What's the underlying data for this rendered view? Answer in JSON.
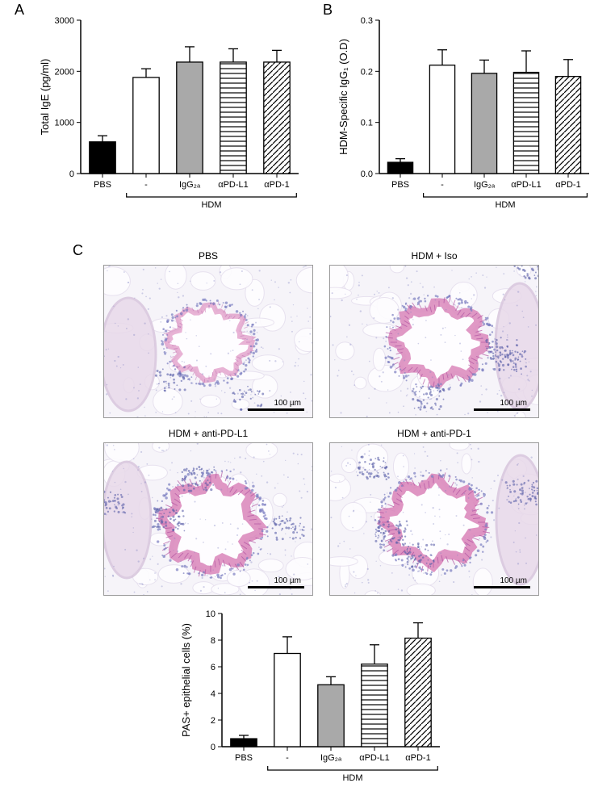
{
  "panelLabels": {
    "A": "A",
    "B": "B",
    "C": "C"
  },
  "chartA": {
    "type": "bar",
    "ylabel": "Total IgE (pg/ml)",
    "ylim": [
      0,
      3000
    ],
    "ytick_step": 1000,
    "categories": [
      "PBS",
      "-",
      "IgG₂ₐ",
      "αPD-L1",
      "αPD-1"
    ],
    "values": [
      620,
      1880,
      2180,
      2180,
      2180
    ],
    "errors": [
      120,
      170,
      300,
      260,
      230
    ],
    "fills": [
      "solid-black",
      "solid-white",
      "solid-grey",
      "hstripe",
      "dstripe"
    ],
    "hdm_bracket_start_idx": 1,
    "hdm_label": "HDM",
    "bar_width": 0.6,
    "colors": {
      "solid-black": "#000000",
      "solid-white": "#ffffff",
      "solid-grey": "#a9a9a9",
      "stripe": "#000000"
    },
    "background_color": "#ffffff",
    "label_fontsize": 13
  },
  "chartB": {
    "type": "bar",
    "ylabel": "HDM-Specific IgG₁ (O.D)",
    "ylim": [
      0,
      0.3
    ],
    "ytick_step": 0.1,
    "categories": [
      "PBS",
      "-",
      "IgG₂ₐ",
      "αPD-L1",
      "αPD-1"
    ],
    "values": [
      0.022,
      0.212,
      0.196,
      0.198,
      0.19
    ],
    "errors": [
      0.007,
      0.03,
      0.026,
      0.042,
      0.033
    ],
    "fills": [
      "solid-black",
      "solid-white",
      "solid-grey",
      "hstripe",
      "dstripe"
    ],
    "hdm_bracket_start_idx": 1,
    "hdm_label": "HDM",
    "bar_width": 0.6
  },
  "micrographs": {
    "labels": [
      "PBS",
      "HDM + Iso",
      "HDM + anti-PD-L1",
      "HDM + anti-PD-1"
    ],
    "scalebar_text": "100 µm"
  },
  "chartC": {
    "type": "bar",
    "ylabel": "PAS+ epithelial cells (%)",
    "ylim": [
      0,
      10
    ],
    "ytick_step": 2,
    "categories": [
      "PBS",
      "-",
      "IgG₂ₐ",
      "αPD-L1",
      "αPD-1"
    ],
    "values": [
      0.6,
      7.0,
      4.65,
      6.2,
      8.15
    ],
    "errors": [
      0.25,
      1.25,
      0.6,
      1.45,
      1.15
    ],
    "fills": [
      "solid-black",
      "solid-white",
      "solid-grey",
      "hstripe",
      "dstripe"
    ],
    "hdm_bracket_start_idx": 1,
    "hdm_label": "HDM",
    "bar_width": 0.6
  },
  "micrograph_style": {
    "tissue_bg": "#f6f4f9",
    "lumen": "#fefdff",
    "epithelium_pink": "#d77bb4",
    "epithelium_dark": "#b051a0",
    "nuclei": "#7a7dc1",
    "nuclei_dark": "#5a5fa8",
    "vessel": "#e8d9ea"
  }
}
